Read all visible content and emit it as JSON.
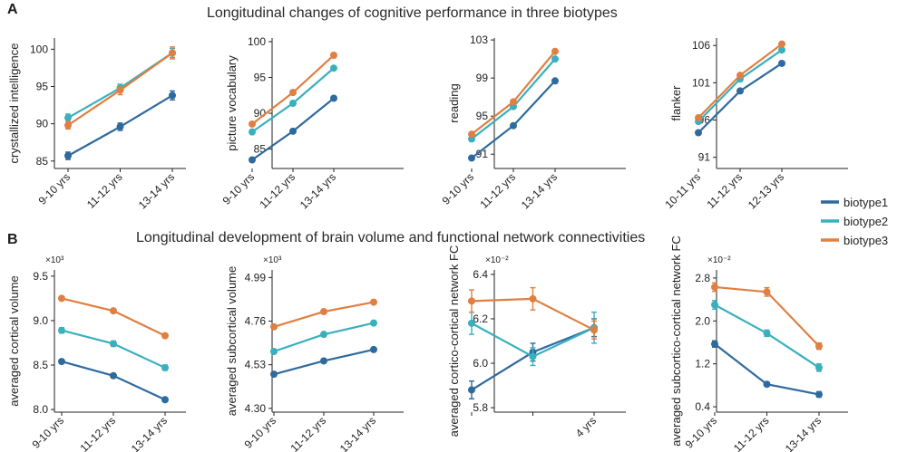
{
  "figure": {
    "panel_a_letter": "A",
    "panel_b_letter": "B",
    "panel_a_title": "Longitudinal changes of cognitive performance in three biotypes",
    "panel_b_title": "Longitudinal development of brain volume and functional network connectivities"
  },
  "legend": {
    "placement": "right",
    "entries": [
      {
        "label": "biotype1",
        "color": "#2f6a9e"
      },
      {
        "label": "biotype2",
        "color": "#3ab0bd"
      },
      {
        "label": "biotype3",
        "color": "#e07f42"
      }
    ]
  },
  "chart_data": [
    {
      "type": "line",
      "title": "",
      "xlabel": "",
      "ylabel": "crystallized intelligence",
      "categories": [
        "9-10 yrs",
        "11-12 yrs",
        "13-14 yrs"
      ],
      "ylim": [
        84,
        101.5
      ],
      "yticks": [
        "85",
        "90",
        "95",
        "100"
      ],
      "scale_label": "",
      "series": [
        {
          "name": "biotype1",
          "values": [
            85.7,
            89.6,
            93.8
          ],
          "error": [
            0.5,
            0.5,
            0.6
          ]
        },
        {
          "name": "biotype2",
          "values": [
            90.8,
            94.8,
            99.5
          ],
          "error": [
            0.5,
            0.5,
            0.6
          ]
        },
        {
          "name": "biotype3",
          "values": [
            89.8,
            94.5,
            99.5
          ],
          "error": [
            0.5,
            0.6,
            0.8
          ]
        }
      ]
    },
    {
      "type": "line",
      "title": "",
      "xlabel": "",
      "ylabel": "picture vocabulary",
      "categories": [
        "9-10 yrs",
        "11-12 yrs",
        "13-14 yrs"
      ],
      "ylim": [
        82.3,
        100.5
      ],
      "yticks": [
        "85",
        "90",
        "95",
        "100"
      ],
      "scale_label": "",
      "series": [
        {
          "name": "biotype1",
          "values": [
            83.5,
            87.5,
            92.1
          ],
          "error": [
            0.2,
            0.2,
            0.2
          ]
        },
        {
          "name": "biotype2",
          "values": [
            87.4,
            91.4,
            96.3
          ],
          "error": [
            0.2,
            0.2,
            0.2
          ]
        },
        {
          "name": "biotype3",
          "values": [
            88.5,
            92.9,
            98.1
          ],
          "error": [
            0.2,
            0.2,
            0.2
          ]
        }
      ]
    },
    {
      "type": "line",
      "title": "",
      "xlabel": "",
      "ylabel": "reading",
      "categories": [
        "9-10 yrs",
        "11-12 yrs",
        "13-14 yrs"
      ],
      "ylim": [
        89.5,
        103.2
      ],
      "yticks": [
        "91",
        "95",
        "99",
        "103"
      ],
      "scale_label": "",
      "series": [
        {
          "name": "biotype1",
          "values": [
            90.6,
            94.0,
            98.7
          ],
          "error": [
            0.15,
            0.15,
            0.15
          ]
        },
        {
          "name": "biotype2",
          "values": [
            92.6,
            96.0,
            101.0
          ],
          "error": [
            0.15,
            0.15,
            0.15
          ]
        },
        {
          "name": "biotype3",
          "values": [
            93.1,
            96.5,
            101.8
          ],
          "error": [
            0.15,
            0.15,
            0.15
          ]
        }
      ]
    },
    {
      "type": "line",
      "title": "",
      "xlabel": "",
      "ylabel": "flanker",
      "categories": [
        "10-11 yrs",
        "11-12 yrs",
        "12-13 yrs"
      ],
      "ylim": [
        89.5,
        107
      ],
      "yticks": [
        "91",
        "96",
        "101",
        "106"
      ],
      "scale_label": "",
      "series": [
        {
          "name": "biotype1",
          "values": [
            94.3,
            99.9,
            103.6
          ],
          "error": [
            0.2,
            0.2,
            0.2
          ]
        },
        {
          "name": "biotype2",
          "values": [
            95.8,
            101.5,
            105.4
          ],
          "error": [
            0.2,
            0.2,
            0.2
          ]
        },
        {
          "name": "biotype3",
          "values": [
            96.3,
            102.0,
            106.2
          ],
          "error": [
            0.2,
            0.2,
            0.2
          ]
        }
      ]
    },
    {
      "type": "line",
      "title": "",
      "xlabel": "",
      "ylabel": "averaged cortical volume",
      "categories": [
        "9-10 yrs",
        "11-12 yrs",
        "13-14 yrs"
      ],
      "ylim": [
        7.97,
        9.57
      ],
      "yticks": [
        "8.0",
        "8.5",
        "9.0",
        "9.5"
      ],
      "scale_label": "×10³",
      "series": [
        {
          "name": "biotype1",
          "values": [
            8.54,
            8.38,
            8.11
          ],
          "error": [
            0.02,
            0.02,
            0.02
          ]
        },
        {
          "name": "biotype2",
          "values": [
            8.89,
            8.74,
            8.47
          ],
          "error": [
            0.03,
            0.03,
            0.03
          ]
        },
        {
          "name": "biotype3",
          "values": [
            9.25,
            9.11,
            8.83
          ],
          "error": [
            0.02,
            0.02,
            0.02
          ]
        }
      ]
    },
    {
      "type": "line",
      "title": "",
      "xlabel": "",
      "ylabel": "averaged subcortical volume",
      "categories": [
        "9-10 yrs",
        "11-12 yrs",
        "13-14 yrs"
      ],
      "ylim": [
        4.28,
        5.03
      ],
      "yticks": [
        "4.30",
        "4.53",
        "4.76",
        "4.99"
      ],
      "scale_label": "×10³",
      "series": [
        {
          "name": "biotype1",
          "values": [
            4.48,
            4.55,
            4.61
          ],
          "error": [
            0.01,
            0.01,
            0.01
          ]
        },
        {
          "name": "biotype2",
          "values": [
            4.6,
            4.69,
            4.75
          ],
          "error": [
            0.01,
            0.01,
            0.01
          ]
        },
        {
          "name": "biotype3",
          "values": [
            4.73,
            4.81,
            4.86
          ],
          "error": [
            0.01,
            0.01,
            0.01
          ]
        }
      ]
    },
    {
      "type": "line",
      "title": "",
      "xlabel": "",
      "ylabel": "averaged cortico-cortical network FC",
      "categories": [
        "",
        "",
        "4 yrs"
      ],
      "ylim": [
        5.78,
        6.42
      ],
      "yticks": [
        "5.8",
        "6.0",
        "6.2",
        "6.4"
      ],
      "scale_label": "×10⁻²",
      "series": [
        {
          "name": "biotype1",
          "values": [
            5.88,
            6.05,
            6.16
          ],
          "error": [
            0.04,
            0.04,
            0.04
          ]
        },
        {
          "name": "biotype2",
          "values": [
            6.18,
            6.03,
            6.16
          ],
          "error": [
            0.05,
            0.04,
            0.07
          ]
        },
        {
          "name": "biotype3",
          "values": [
            6.28,
            6.29,
            6.15
          ],
          "error": [
            0.05,
            0.05,
            0.04
          ]
        }
      ]
    },
    {
      "type": "line",
      "title": "",
      "xlabel": "",
      "ylabel": "averaged subcortico-cortical network FC",
      "categories": [
        "9-10 yrs",
        "11-12 yrs",
        "13-14 yrs"
      ],
      "ylim": [
        0.3,
        2.95
      ],
      "yticks": [
        "0.4",
        "1.2",
        "2.0",
        "2.8"
      ],
      "scale_label": "×10⁻²",
      "series": [
        {
          "name": "biotype1",
          "values": [
            1.57,
            0.82,
            0.63
          ],
          "error": [
            0.06,
            0.04,
            0.05
          ]
        },
        {
          "name": "biotype2",
          "values": [
            2.3,
            1.77,
            1.13
          ],
          "error": [
            0.08,
            0.06,
            0.07
          ]
        },
        {
          "name": "biotype3",
          "values": [
            2.63,
            2.54,
            1.53
          ],
          "error": [
            0.08,
            0.08,
            0.06
          ]
        }
      ]
    }
  ]
}
